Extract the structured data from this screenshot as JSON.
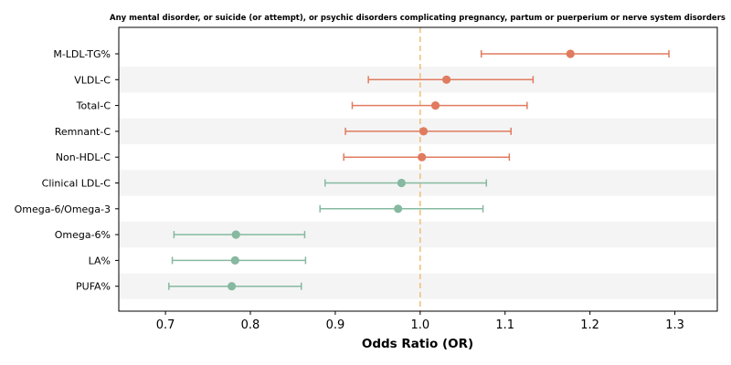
{
  "chart_data": {
    "type": "forest",
    "title": "Any mental disorder, or suicide (or attempt), or psychic disorders complicating pregnancy, partum or puerperium or nerve system disorders",
    "xlabel": "Odds Ratio (OR)",
    "xlim": [
      0.645,
      1.35
    ],
    "xticks": [
      0.7,
      0.8,
      0.9,
      1.0,
      1.1,
      1.2,
      1.3
    ],
    "xtick_labels": [
      "0.7",
      "0.8",
      "0.9",
      "1.0",
      "1.1",
      "1.2",
      "1.3"
    ],
    "reference_line": 1.0,
    "reference_color": "#f0c27b",
    "colors": {
      "above": "#e07b5f",
      "below": "#86b9a0"
    },
    "grid": "alternating row bands",
    "rows": [
      {
        "label": "M-LDL-TG%",
        "or": 1.177,
        "lower": 1.072,
        "upper": 1.293,
        "group": "above"
      },
      {
        "label": "VLDL-C",
        "or": 1.031,
        "lower": 0.939,
        "upper": 1.133,
        "group": "above"
      },
      {
        "label": "Total-C",
        "or": 1.018,
        "lower": 0.92,
        "upper": 1.126,
        "group": "above"
      },
      {
        "label": "Remnant-C",
        "or": 1.004,
        "lower": 0.912,
        "upper": 1.107,
        "group": "above"
      },
      {
        "label": "Non-HDL-C",
        "or": 1.002,
        "lower": 0.91,
        "upper": 1.105,
        "group": "above"
      },
      {
        "label": "Clinical LDL-C",
        "or": 0.978,
        "lower": 0.888,
        "upper": 1.078,
        "group": "below"
      },
      {
        "label": "Omega-6/Omega-3",
        "or": 0.974,
        "lower": 0.882,
        "upper": 1.074,
        "group": "below"
      },
      {
        "label": "Omega-6%",
        "or": 0.783,
        "lower": 0.71,
        "upper": 0.864,
        "group": "below"
      },
      {
        "label": "LA%",
        "or": 0.782,
        "lower": 0.708,
        "upper": 0.865,
        "group": "below"
      },
      {
        "label": "PUFA%",
        "or": 0.778,
        "lower": 0.704,
        "upper": 0.86,
        "group": "below"
      }
    ]
  }
}
